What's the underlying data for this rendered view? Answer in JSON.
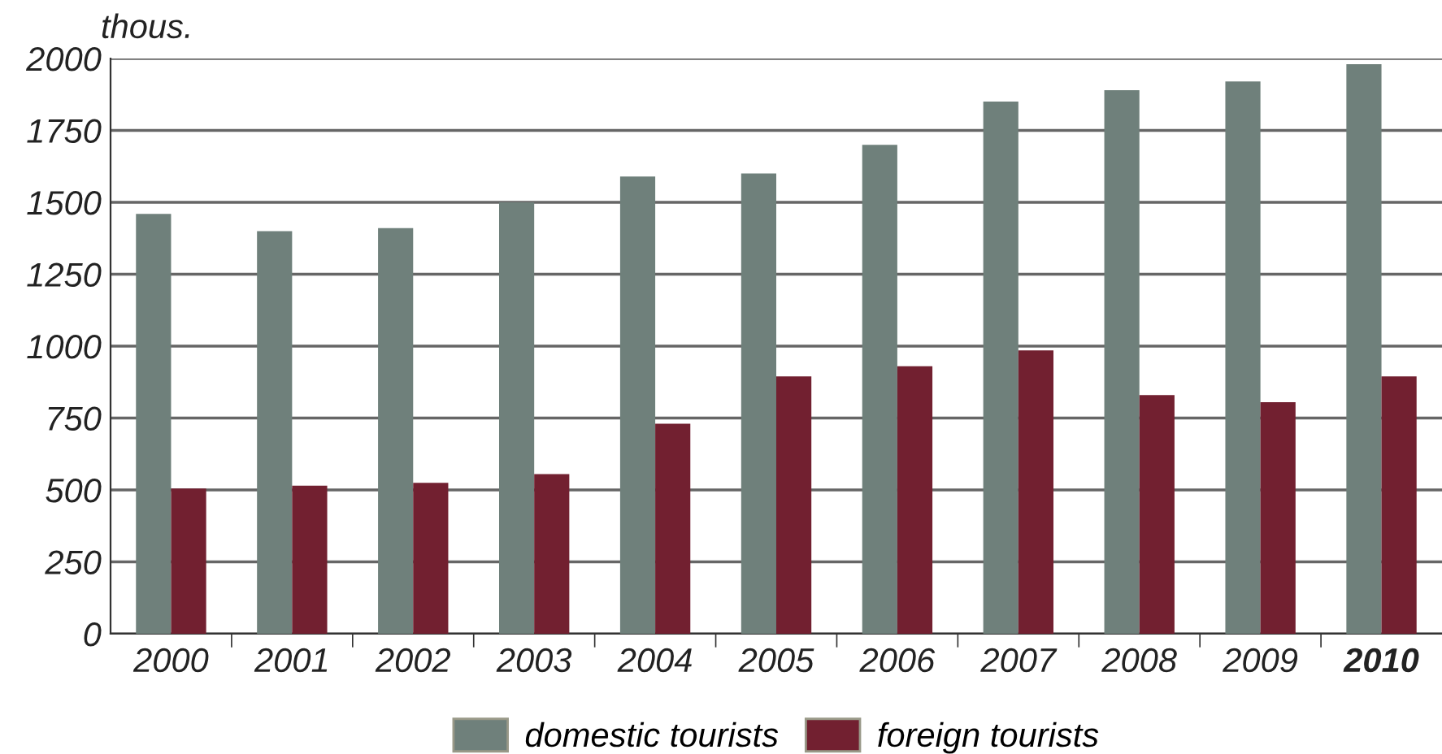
{
  "chart_data": {
    "type": "bar",
    "ylabel": "thous.",
    "categories": [
      "2000",
      "2001",
      "2002",
      "2003",
      "2004",
      "2005",
      "2006",
      "2007",
      "2008",
      "2009",
      "2010"
    ],
    "series": [
      {
        "name": "domestic tourists",
        "color": "#6f807b",
        "values": [
          1460,
          1400,
          1410,
          1500,
          1590,
          1600,
          1700,
          1850,
          1890,
          1920,
          1980
        ]
      },
      {
        "name": "foreign tourists",
        "color": "#722030",
        "values": [
          505,
          515,
          525,
          555,
          730,
          895,
          930,
          985,
          830,
          805,
          895
        ]
      }
    ],
    "ylim": [
      0,
      2000
    ],
    "yticks": [
      0,
      250,
      500,
      750,
      1000,
      1250,
      1500,
      1750,
      2000
    ],
    "grid": "y",
    "legend": "bottom"
  }
}
